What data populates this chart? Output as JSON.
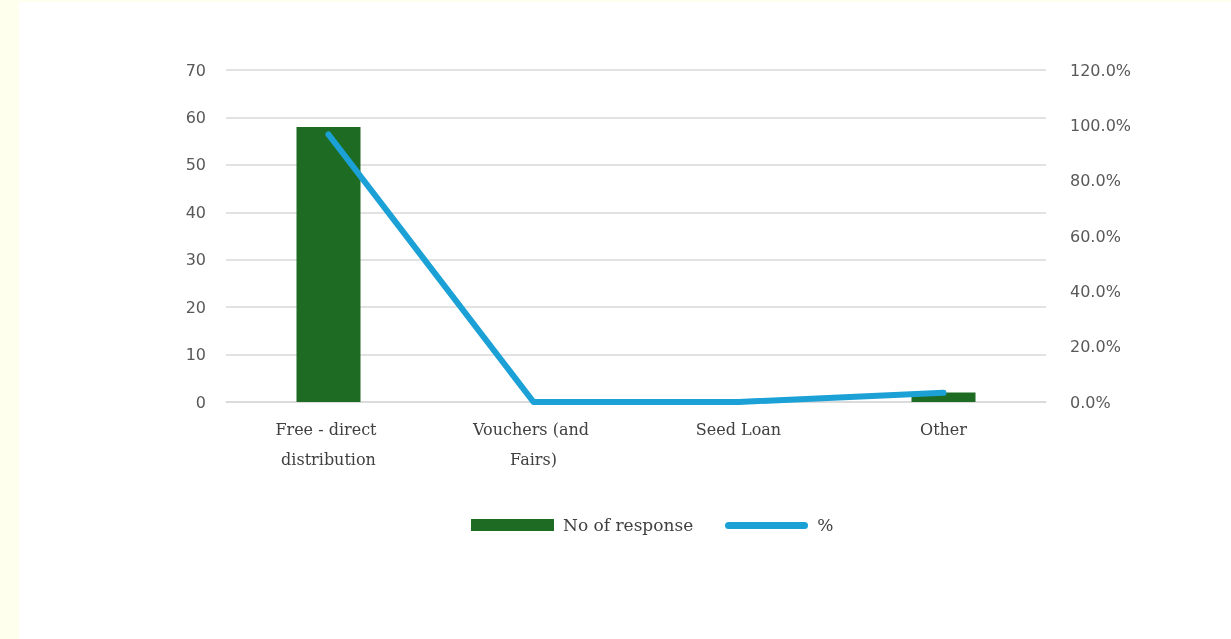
{
  "chart_data": {
    "type": "bar",
    "categories": [
      "Free - direct distribution",
      "Vouchers (and Fairs)",
      "Seed Loan",
      "Other"
    ],
    "series": [
      {
        "name": "No of response",
        "color": "#1e6b24",
        "values": [
          58,
          0,
          0,
          2
        ]
      },
      {
        "name": "%",
        "type": "line",
        "axis": "y2",
        "color": "#1ba1d6",
        "values": [
          96.7,
          0,
          0,
          3.3
        ]
      }
    ],
    "ylim": [
      0,
      70
    ],
    "yticks": [
      0,
      10,
      20,
      30,
      40,
      50,
      60,
      70
    ],
    "y2lim": [
      0,
      120
    ],
    "y2ticks": [
      {
        "value": 0,
        "label": "0.0%"
      },
      {
        "value": 20,
        "label": "20.0%"
      },
      {
        "value": 40,
        "label": "40.0%"
      },
      {
        "value": 60,
        "label": "60.0%"
      },
      {
        "value": 80,
        "label": "80.0%"
      },
      {
        "value": 100,
        "label": "100.0%"
      },
      {
        "value": 120,
        "label": "120.0%"
      }
    ],
    "grid": "y",
    "legend": "bottom",
    "marker": "none",
    "line_style": "solid"
  }
}
